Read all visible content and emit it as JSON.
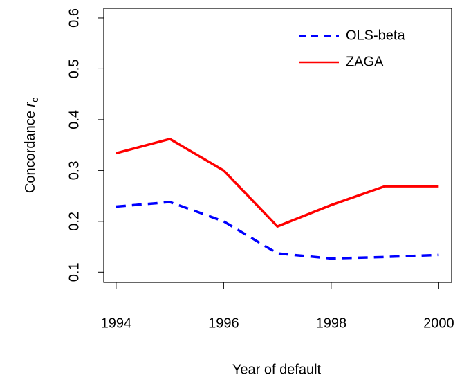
{
  "chart_data": {
    "type": "line",
    "x_label": "Year of default",
    "y_label": [
      "Concordance",
      "r",
      "c"
    ],
    "x": [
      1994,
      1995,
      1996,
      1997,
      1998,
      1999,
      2000
    ],
    "series": [
      {
        "name": "OLS-beta",
        "color": "#0000ff",
        "dash": true,
        "values": [
          0.229,
          0.238,
          0.2,
          0.137,
          0.127,
          0.13,
          0.134
        ]
      },
      {
        "name": "ZAGA",
        "color": "#ff0000",
        "dash": false,
        "values": [
          0.334,
          0.362,
          0.3,
          0.19,
          0.232,
          0.269,
          0.269
        ]
      }
    ],
    "xlim": [
      1993.77,
      2000.24
    ],
    "xticks": [
      1994,
      1996,
      1998,
      2000
    ],
    "ylim": [
      0.08,
      0.619
    ],
    "yticks": [
      0.1,
      0.2,
      0.3,
      0.4,
      0.5,
      0.6
    ],
    "legend": "top-right"
  }
}
